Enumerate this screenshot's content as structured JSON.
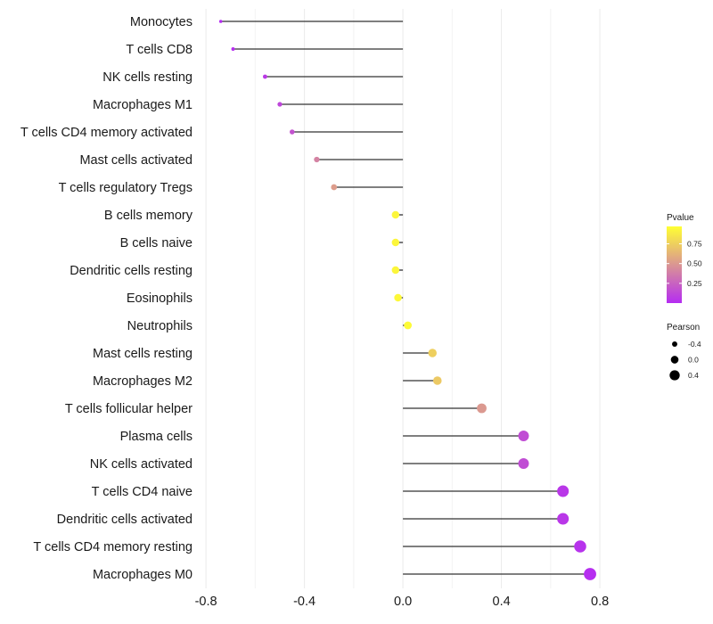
{
  "chart_data": {
    "type": "lollipop",
    "title": "",
    "xlabel": "",
    "ylabel": "",
    "xlim": [
      -0.88,
      0.93
    ],
    "xticks": [
      -0.8,
      -0.4,
      0.0,
      0.4,
      0.8
    ],
    "xtick_labels": [
      "-0.8",
      "-0.4",
      "0.0",
      "0.4",
      "0.8"
    ],
    "grid": true,
    "baseline": 0.0,
    "categories": [
      "Monocytes",
      "T cells CD8",
      "NK cells resting",
      "Macrophages M1",
      "T cells CD4 memory activated",
      "Mast cells activated",
      "T cells regulatory  Tregs ",
      "B cells memory",
      "B cells naive",
      "Dendritic cells resting",
      "Eosinophils",
      "Neutrophils",
      "Mast cells resting",
      "Macrophages M2",
      "T cells follicular helper",
      "Plasma cells",
      "NK cells activated",
      "T cells CD4 naive",
      "Dendritic cells activated",
      "T cells CD4 memory resting",
      "Macrophages M0"
    ],
    "pearson": [
      -0.74,
      -0.69,
      -0.56,
      -0.5,
      -0.45,
      -0.35,
      -0.28,
      -0.03,
      -0.03,
      -0.03,
      -0.02,
      0.02,
      0.12,
      0.14,
      0.32,
      0.49,
      0.49,
      0.65,
      0.65,
      0.72,
      0.76
    ],
    "pvalue": [
      0.0,
      0.01,
      0.06,
      0.12,
      0.18,
      0.4,
      0.52,
      0.93,
      0.93,
      0.93,
      0.94,
      0.95,
      0.75,
      0.72,
      0.5,
      0.15,
      0.15,
      0.05,
      0.05,
      0.03,
      0.01
    ],
    "legend": {
      "pvalue": {
        "title": "Pvalue",
        "color_low": "#b52cf2",
        "color_high": "#ffff33",
        "breaks": [
          0.25,
          0.5,
          0.75
        ],
        "break_labels": [
          "0.25",
          "0.50",
          "0.75"
        ],
        "range": [
          0.0,
          0.97
        ]
      },
      "pearson": {
        "title": "Pearson",
        "breaks": [
          -0.4,
          0.0,
          0.4
        ],
        "break_labels": [
          "-0.4",
          "0.0",
          "0.4"
        ]
      },
      "placement": "right"
    }
  }
}
